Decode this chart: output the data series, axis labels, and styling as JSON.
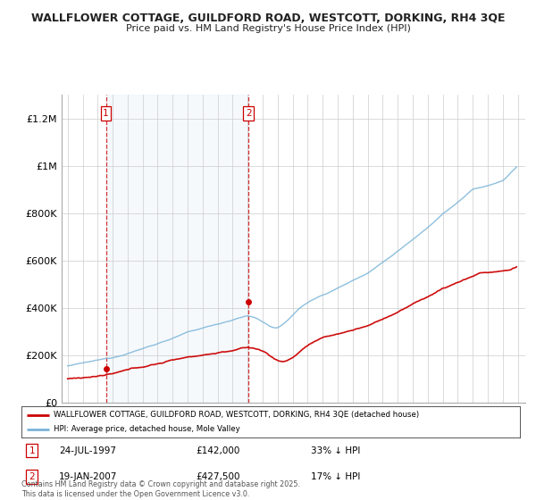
{
  "title_line1": "WALLFLOWER COTTAGE, GUILDFORD ROAD, WESTCOTT, DORKING, RH4 3QE",
  "title_line2": "Price paid vs. HM Land Registry's House Price Index (HPI)",
  "ylim": [
    0,
    1300000
  ],
  "yticks": [
    0,
    200000,
    400000,
    600000,
    800000,
    1000000,
    1200000
  ],
  "ytick_labels": [
    "£0",
    "£200K",
    "£400K",
    "£600K",
    "£800K",
    "£1M",
    "£1.2M"
  ],
  "sale1_year": 1997.55,
  "sale1_price": 142000,
  "sale2_year": 2007.05,
  "sale2_price": 427500,
  "sale1_date": "24-JUL-1997",
  "sale1_amount": "£142,000",
  "sale1_hpi": "33% ↓ HPI",
  "sale2_date": "19-JAN-2007",
  "sale2_amount": "£427,500",
  "sale2_hpi": "17% ↓ HPI",
  "hpi_color": "#7ab4d8",
  "price_color": "#cc0000",
  "vline_color": "#cc0000",
  "fill_color": "#d8eaf5",
  "background_color": "#ffffff",
  "grid_color": "#cccccc",
  "legend_label_red": "WALLFLOWER COTTAGE, GUILDFORD ROAD, WESTCOTT, DORKING, RH4 3QE (detached house)",
  "legend_label_blue": "HPI: Average price, detached house, Mole Valley",
  "footer": "Contains HM Land Registry data © Crown copyright and database right 2025.\nThis data is licensed under the Open Government Licence v3.0."
}
